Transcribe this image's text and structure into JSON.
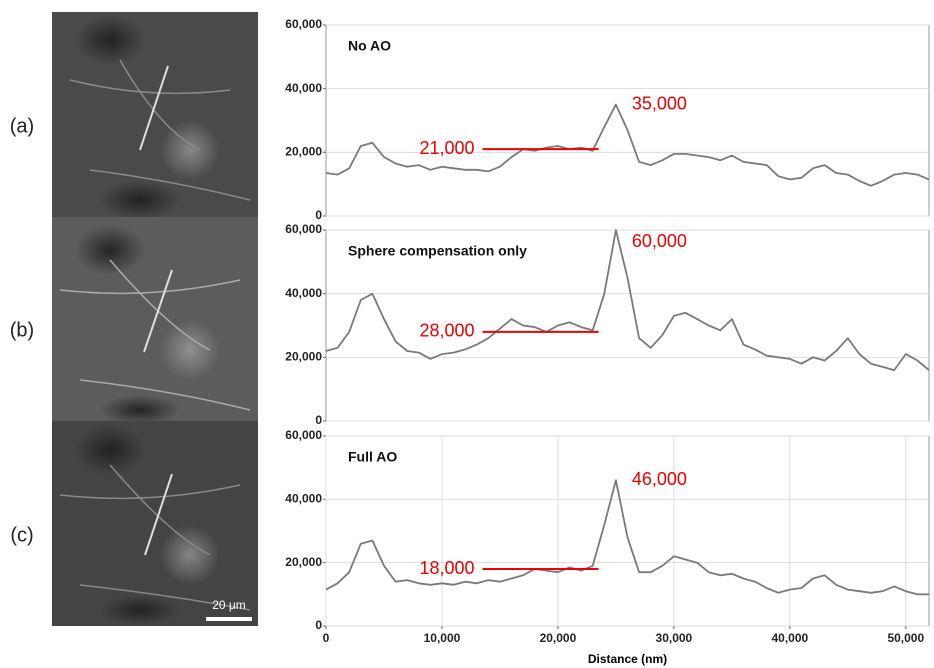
{
  "panel_labels": [
    "(a)",
    "(b)",
    "(c)"
  ],
  "scale_bar": "20 μm",
  "chart_data": [
    {
      "type": "line",
      "title": "No AO",
      "color": "#7a7a7a",
      "grid": "y",
      "xlim": [
        0,
        52000
      ],
      "ylim": [
        0,
        60000
      ],
      "yticks": [
        0,
        {
          "value": 20000,
          "label": "20,000"
        },
        {
          "value": 40000,
          "label": "40,000"
        },
        {
          "value": 60000,
          "label": "60,000"
        }
      ],
      "x": [
        0,
        1000,
        2000,
        3000,
        4000,
        5000,
        6000,
        7000,
        8000,
        9000,
        10000,
        11000,
        12000,
        13000,
        14000,
        15000,
        16000,
        17000,
        18000,
        19000,
        20000,
        21000,
        22000,
        23000,
        24000,
        25000,
        26000,
        27000,
        28000,
        29000,
        30000,
        31000,
        32000,
        33000,
        34000,
        35000,
        36000,
        37000,
        38000,
        39000,
        40000,
        41000,
        42000,
        43000,
        44000,
        45000,
        46000,
        47000,
        48000,
        49000,
        50000,
        51000,
        52000
      ],
      "values": [
        13500,
        13000,
        15000,
        22000,
        23000,
        18500,
        16500,
        15500,
        16000,
        14500,
        15500,
        15000,
        14500,
        14500,
        14000,
        15500,
        18500,
        21000,
        20500,
        21500,
        22000,
        21000,
        21500,
        20500,
        28000,
        35000,
        27000,
        17000,
        16000,
        17500,
        19500,
        19500,
        19000,
        18500,
        17500,
        19000,
        17000,
        16500,
        16000,
        12500,
        11500,
        12000,
        15000,
        16000,
        13500,
        13000,
        11000,
        9500,
        11000,
        13000,
        13500,
        13000,
        11500
      ],
      "mean_line": {
        "value": 21000,
        "label": "21,000",
        "x0": 13500,
        "x1": 23500
      },
      "peak_label": {
        "value": 35000,
        "label": "35,000"
      }
    },
    {
      "type": "line",
      "title": "Sphere compensation only",
      "color": "#7a7a7a",
      "grid": "y",
      "xlim": [
        0,
        52000
      ],
      "ylim": [
        0,
        60000
      ],
      "yticks": [
        0,
        {
          "value": 20000,
          "label": "20,000"
        },
        {
          "value": 40000,
          "label": "40,000"
        },
        {
          "value": 60000,
          "label": "60,000"
        }
      ],
      "x": [
        0,
        1000,
        2000,
        3000,
        4000,
        5000,
        6000,
        7000,
        8000,
        9000,
        10000,
        11000,
        12000,
        13000,
        14000,
        15000,
        16000,
        17000,
        18000,
        19000,
        20000,
        21000,
        22000,
        23000,
        24000,
        25000,
        26000,
        27000,
        28000,
        29000,
        30000,
        31000,
        32000,
        33000,
        34000,
        35000,
        36000,
        37000,
        38000,
        39000,
        40000,
        41000,
        42000,
        43000,
        44000,
        45000,
        46000,
        47000,
        48000,
        49000,
        50000,
        51000,
        52000
      ],
      "values": [
        22000,
        23000,
        28000,
        38000,
        40000,
        32000,
        25000,
        22000,
        21500,
        19500,
        21000,
        21500,
        22500,
        24000,
        26000,
        29000,
        32000,
        30000,
        29500,
        28000,
        30000,
        31000,
        29500,
        28500,
        40000,
        60000,
        45000,
        26000,
        23000,
        27000,
        33000,
        34000,
        32000,
        30000,
        28500,
        32000,
        24000,
        22500,
        20500,
        20000,
        19500,
        18000,
        20000,
        19000,
        22000,
        26000,
        21000,
        18000,
        17000,
        16000,
        21000,
        19000,
        16000
      ],
      "mean_line": {
        "value": 28000,
        "label": "28,000",
        "x0": 13500,
        "x1": 23500
      },
      "peak_label": {
        "value": 60000,
        "label": "60,000"
      }
    },
    {
      "type": "line",
      "title": "Full AO",
      "color": "#7a7a7a",
      "grid": "both",
      "xlim": [
        0,
        52000
      ],
      "ylim": [
        0,
        60000
      ],
      "xticks": [
        0,
        {
          "value": 10000,
          "label": "10,000"
        },
        {
          "value": 20000,
          "label": "20,000"
        },
        {
          "value": 30000,
          "label": "30,000"
        },
        {
          "value": 40000,
          "label": "40,000"
        },
        {
          "value": 50000,
          "label": "50,000"
        }
      ],
      "xlabel": "Distance (nm)",
      "yticks": [
        0,
        {
          "value": 20000,
          "label": "20,000"
        },
        {
          "value": 40000,
          "label": "40,000"
        },
        {
          "value": 60000,
          "label": "60,000"
        }
      ],
      "x": [
        0,
        1000,
        2000,
        3000,
        4000,
        5000,
        6000,
        7000,
        8000,
        9000,
        10000,
        11000,
        12000,
        13000,
        14000,
        15000,
        16000,
        17000,
        18000,
        19000,
        20000,
        21000,
        22000,
        23000,
        24000,
        25000,
        26000,
        27000,
        28000,
        29000,
        30000,
        31000,
        32000,
        33000,
        34000,
        35000,
        36000,
        37000,
        38000,
        39000,
        40000,
        41000,
        42000,
        43000,
        44000,
        45000,
        46000,
        47000,
        48000,
        49000,
        50000,
        51000,
        52000
      ],
      "values": [
        11500,
        13500,
        17000,
        26000,
        27000,
        19000,
        14000,
        14500,
        13500,
        13000,
        13500,
        13000,
        14000,
        13500,
        14500,
        14000,
        15000,
        16000,
        18000,
        17500,
        17000,
        18500,
        17500,
        19000,
        32000,
        46000,
        28000,
        17000,
        17000,
        19000,
        22000,
        21000,
        20000,
        17000,
        16000,
        16500,
        15000,
        14000,
        12000,
        10500,
        11500,
        12000,
        15000,
        16000,
        13000,
        11500,
        11000,
        10500,
        11000,
        12500,
        11000,
        10000,
        10000
      ],
      "mean_line": {
        "value": 18000,
        "label": "18,000",
        "x0": 13500,
        "x1": 23500
      },
      "peak_label": {
        "value": 46000,
        "label": "46,000"
      }
    }
  ]
}
